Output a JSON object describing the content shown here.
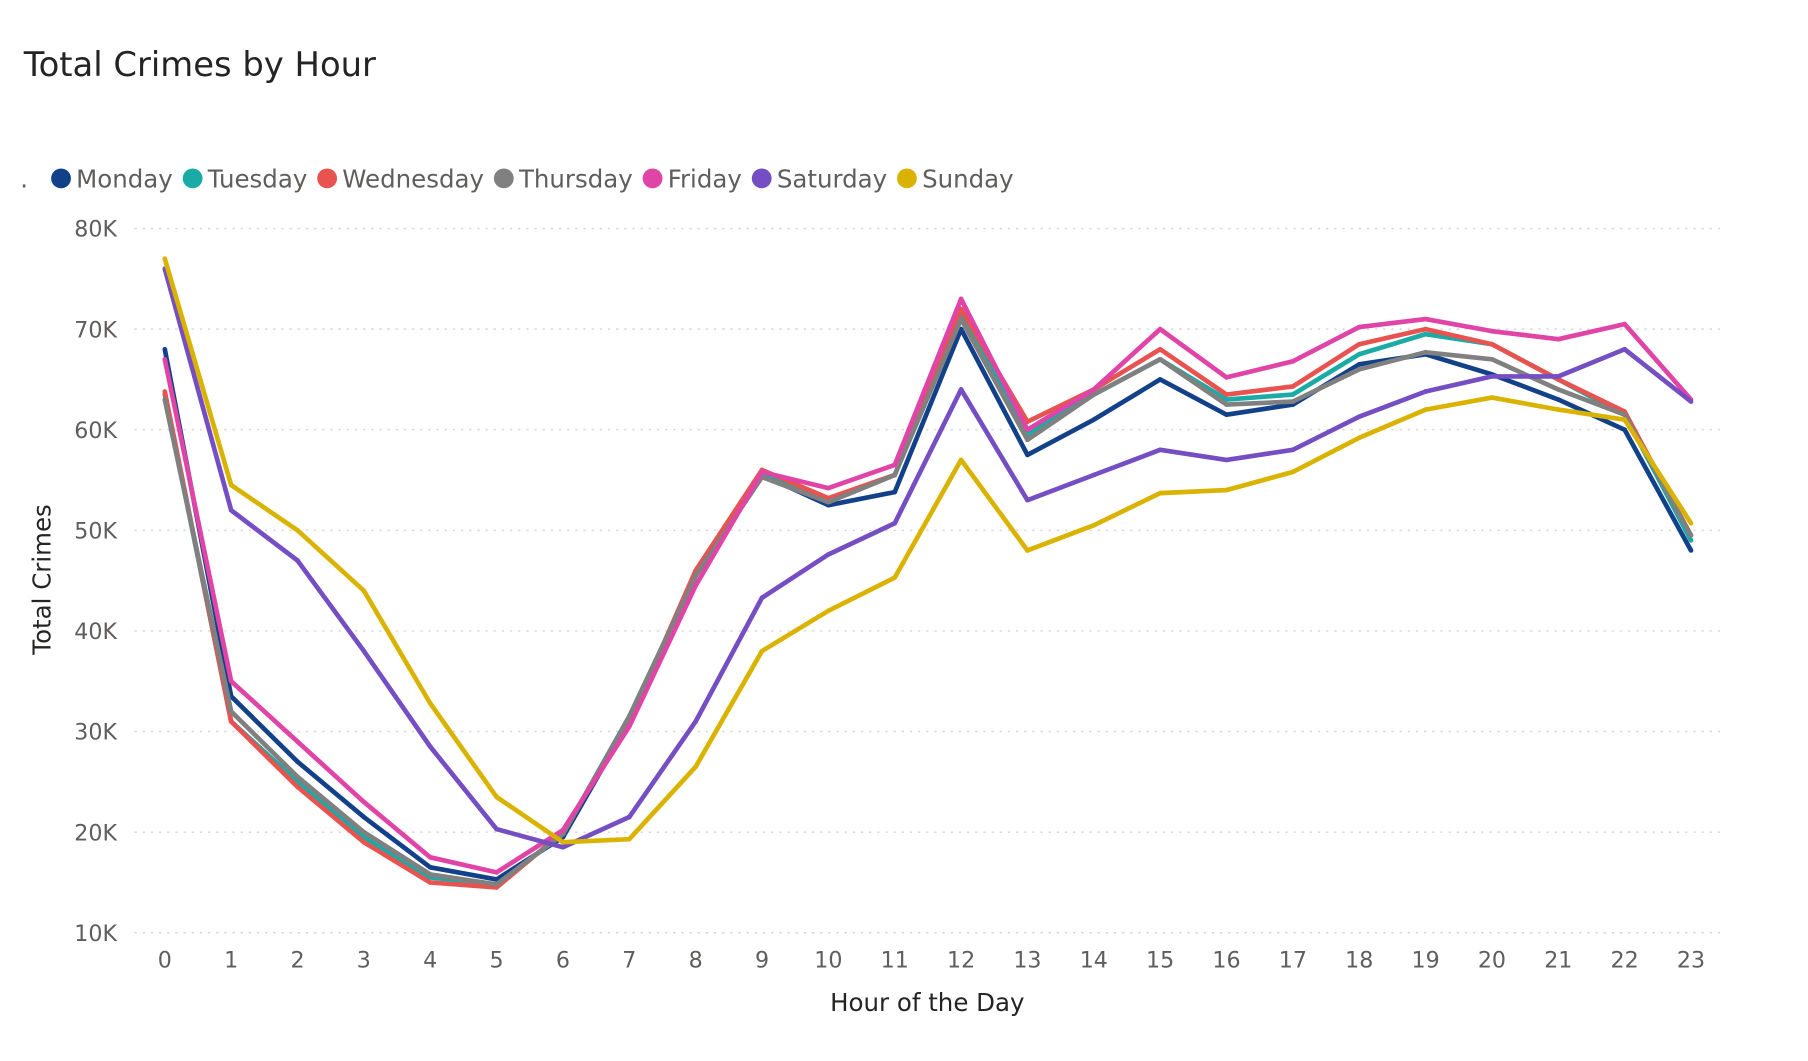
{
  "chart_data": {
    "type": "line",
    "title": "Total Crimes by Hour",
    "legend_prefix": ".",
    "legend_position": "top-left",
    "xlabel": "Hour of the Day",
    "ylabel": "Total Crimes",
    "x": [
      0,
      1,
      2,
      3,
      4,
      5,
      6,
      7,
      8,
      9,
      10,
      11,
      12,
      13,
      14,
      15,
      16,
      17,
      18,
      19,
      20,
      21,
      22,
      23
    ],
    "ylim": [
      10000,
      80000
    ],
    "yticks": [
      10000,
      20000,
      30000,
      40000,
      50000,
      60000,
      70000,
      80000
    ],
    "ytick_labels": [
      "10K",
      "20K",
      "30K",
      "40K",
      "50K",
      "60K",
      "70K",
      "80K"
    ],
    "grid": true,
    "series": [
      {
        "name": "Monday",
        "color": "#12418a",
        "values": [
          68000,
          33500,
          27000,
          21500,
          16500,
          15300,
          19500,
          31000,
          45500,
          55500,
          52500,
          53800,
          70000,
          57500,
          61000,
          65000,
          61500,
          62500,
          66500,
          67500,
          65500,
          63000,
          60000,
          48000
        ]
      },
      {
        "name": "Tuesday",
        "color": "#1aaba6",
        "values": [
          63500,
          31000,
          25000,
          19500,
          15500,
          14800,
          19800,
          31500,
          45500,
          55500,
          53000,
          55500,
          71500,
          59500,
          63500,
          67000,
          63000,
          63500,
          67500,
          69500,
          68500,
          65000,
          61500,
          49000
        ]
      },
      {
        "name": "Wednesday",
        "color": "#e8524f",
        "values": [
          63800,
          31000,
          24500,
          19000,
          15000,
          14500,
          20000,
          31000,
          46000,
          56000,
          53200,
          55500,
          72000,
          60800,
          64000,
          68000,
          63500,
          64300,
          68500,
          70000,
          68500,
          65000,
          61800,
          49500
        ]
      },
      {
        "name": "Thursday",
        "color": "#808080",
        "values": [
          63000,
          32000,
          25500,
          20000,
          15800,
          14800,
          19800,
          31500,
          45500,
          55300,
          52800,
          55500,
          71000,
          59000,
          63500,
          67000,
          62500,
          62800,
          66000,
          67700,
          67000,
          64000,
          61500,
          49500
        ]
      },
      {
        "name": "Friday",
        "color": "#e044a7",
        "values": [
          67000,
          35000,
          29000,
          23000,
          17500,
          16000,
          20200,
          30500,
          44500,
          55800,
          54200,
          56500,
          73000,
          60000,
          64000,
          70000,
          65200,
          66800,
          70200,
          71000,
          69800,
          69000,
          70500,
          63000
        ]
      },
      {
        "name": "Saturday",
        "color": "#744ec2",
        "values": [
          76000,
          52000,
          47000,
          38000,
          28500,
          20300,
          18500,
          21500,
          31000,
          43300,
          47600,
          50700,
          64000,
          53000,
          55500,
          58000,
          57000,
          58000,
          61300,
          63800,
          65300,
          65300,
          68000,
          62800
        ]
      },
      {
        "name": "Sunday",
        "color": "#d9b300",
        "values": [
          77000,
          54500,
          50000,
          44000,
          32800,
          23500,
          19000,
          19300,
          26500,
          38000,
          42000,
          45300,
          57000,
          48000,
          50500,
          53700,
          54000,
          55800,
          59200,
          62000,
          63200,
          62000,
          61000,
          50700
        ]
      }
    ]
  }
}
